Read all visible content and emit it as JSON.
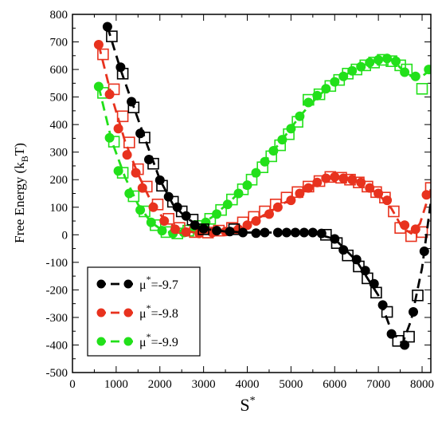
{
  "chart_data": {
    "type": "scatter",
    "xlabel": "S",
    "xlabel_sup": "*",
    "ylabel_main": "Free Energy (k",
    "ylabel_sub": "B",
    "ylabel_end": "T)",
    "xlim": [
      0,
      8200
    ],
    "ylim": [
      -500,
      800
    ],
    "xticks": [
      0,
      1000,
      2000,
      3000,
      4000,
      5000,
      6000,
      7000,
      8000
    ],
    "yticks": [
      -500,
      -400,
      -300,
      -200,
      -100,
      0,
      100,
      200,
      300,
      400,
      500,
      600,
      700,
      800
    ],
    "legend_position": "bottom-left",
    "series": [
      {
        "name": "μ*=-9.7",
        "label_prefix": "μ",
        "label_sup": "*",
        "label_suffix": "=-9.7",
        "color": "#000000",
        "circles": [
          [
            800,
            755
          ],
          [
            1100,
            608
          ],
          [
            1350,
            483
          ],
          [
            1550,
            368
          ],
          [
            1750,
            273
          ],
          [
            2000,
            198
          ],
          [
            2200,
            138
          ],
          [
            2400,
            100
          ],
          [
            2600,
            68
          ],
          [
            2800,
            35
          ],
          [
            3000,
            22
          ],
          [
            3300,
            15
          ],
          [
            3600,
            12
          ],
          [
            3900,
            8
          ],
          [
            4200,
            6
          ],
          [
            4400,
            8
          ],
          [
            4700,
            8
          ],
          [
            4900,
            8
          ],
          [
            5100,
            8
          ],
          [
            5300,
            8
          ],
          [
            5500,
            8
          ],
          [
            5700,
            5
          ],
          [
            6000,
            -15
          ],
          [
            6200,
            -55
          ],
          [
            6500,
            -90
          ],
          [
            6700,
            -130
          ],
          [
            6900,
            -178
          ],
          [
            7100,
            -255
          ],
          [
            7300,
            -360
          ],
          [
            7600,
            -400
          ],
          [
            7800,
            -280
          ],
          [
            8050,
            -60
          ]
        ],
        "squares": [
          [
            900,
            720
          ],
          [
            1150,
            585
          ],
          [
            1400,
            462
          ],
          [
            1650,
            353
          ],
          [
            1850,
            258
          ],
          [
            2050,
            178
          ],
          [
            2300,
            120
          ],
          [
            2500,
            85
          ],
          [
            2750,
            55
          ],
          [
            3000,
            20
          ],
          [
            3700,
            20
          ],
          [
            5800,
            0
          ],
          [
            6050,
            -30
          ],
          [
            6300,
            -75
          ],
          [
            6550,
            -115
          ],
          [
            6750,
            -158
          ],
          [
            6950,
            -210
          ],
          [
            7200,
            -280
          ],
          [
            7450,
            -385
          ],
          [
            7700,
            -370
          ],
          [
            7900,
            -220
          ]
        ],
        "curve": [
          [
            800,
            755
          ],
          [
            1100,
            600
          ],
          [
            1400,
            465
          ],
          [
            1700,
            330
          ],
          [
            2000,
            200
          ],
          [
            2300,
            110
          ],
          [
            2600,
            62
          ],
          [
            3000,
            22
          ],
          [
            3500,
            12
          ],
          [
            4000,
            8
          ],
          [
            4500,
            8
          ],
          [
            5000,
            8
          ],
          [
            5500,
            6
          ],
          [
            6000,
            -15
          ],
          [
            6500,
            -95
          ],
          [
            7000,
            -220
          ],
          [
            7300,
            -350
          ],
          [
            7550,
            -395
          ],
          [
            7750,
            -310
          ],
          [
            8000,
            -120
          ],
          [
            8200,
            120
          ]
        ]
      },
      {
        "name": "μ*=-9.8",
        "label_prefix": "μ",
        "label_sup": "*",
        "label_suffix": "=-9.8",
        "color": "#e8321e",
        "circles": [
          [
            600,
            690
          ],
          [
            850,
            510
          ],
          [
            1050,
            385
          ],
          [
            1250,
            290
          ],
          [
            1450,
            225
          ],
          [
            1600,
            170
          ],
          [
            1850,
            100
          ],
          [
            2100,
            50
          ],
          [
            2350,
            20
          ],
          [
            2600,
            10
          ],
          [
            2900,
            5
          ],
          [
            3200,
            8
          ],
          [
            3500,
            12
          ],
          [
            3800,
            20
          ],
          [
            4000,
            35
          ],
          [
            4200,
            50
          ],
          [
            4500,
            75
          ],
          [
            4700,
            100
          ],
          [
            5000,
            125
          ],
          [
            5200,
            150
          ],
          [
            5400,
            170
          ],
          [
            5600,
            190
          ],
          [
            5800,
            205
          ],
          [
            6000,
            210
          ],
          [
            6200,
            205
          ],
          [
            6400,
            200
          ],
          [
            6600,
            190
          ],
          [
            6800,
            170
          ],
          [
            7000,
            150
          ],
          [
            7200,
            125
          ],
          [
            7600,
            35
          ],
          [
            7850,
            20
          ],
          [
            8100,
            145
          ]
        ],
        "squares": [
          [
            700,
            655
          ],
          [
            950,
            528
          ],
          [
            1150,
            430
          ],
          [
            1300,
            335
          ],
          [
            1500,
            238
          ],
          [
            1700,
            175
          ],
          [
            1950,
            110
          ],
          [
            2200,
            58
          ],
          [
            2450,
            25
          ],
          [
            2800,
            10
          ],
          [
            3100,
            8
          ],
          [
            3350,
            15
          ],
          [
            3650,
            25
          ],
          [
            3900,
            45
          ],
          [
            4150,
            65
          ],
          [
            4400,
            85
          ],
          [
            4650,
            110
          ],
          [
            4900,
            135
          ],
          [
            5150,
            155
          ],
          [
            5400,
            175
          ],
          [
            5650,
            195
          ],
          [
            5900,
            210
          ],
          [
            6150,
            207
          ],
          [
            6350,
            200
          ],
          [
            6550,
            190
          ],
          [
            6750,
            175
          ],
          [
            6950,
            155
          ],
          [
            7150,
            135
          ],
          [
            7350,
            85
          ],
          [
            7500,
            25
          ],
          [
            7750,
            -5
          ],
          [
            8000,
            10
          ],
          [
            8200,
            170
          ]
        ],
        "curve": [
          [
            600,
            690
          ],
          [
            900,
            500
          ],
          [
            1200,
            340
          ],
          [
            1500,
            220
          ],
          [
            1800,
            120
          ],
          [
            2100,
            55
          ],
          [
            2400,
            20
          ],
          [
            2800,
            8
          ],
          [
            3200,
            8
          ],
          [
            3600,
            18
          ],
          [
            4000,
            38
          ],
          [
            4500,
            82
          ],
          [
            5000,
            130
          ],
          [
            5500,
            180
          ],
          [
            5900,
            208
          ],
          [
            6200,
            205
          ],
          [
            6600,
            188
          ],
          [
            7000,
            148
          ],
          [
            7300,
            95
          ],
          [
            7550,
            25
          ],
          [
            7750,
            5
          ],
          [
            7950,
            40
          ],
          [
            8200,
            165
          ]
        ]
      },
      {
        "name": "μ*=-9.9",
        "label_prefix": "μ",
        "label_sup": "*",
        "label_suffix": "=-9.9",
        "color": "#22e01a",
        "circles": [
          [
            600,
            538
          ],
          [
            850,
            352
          ],
          [
            1050,
            232
          ],
          [
            1300,
            150
          ],
          [
            1550,
            90
          ],
          [
            1800,
            45
          ],
          [
            2050,
            15
          ],
          [
            2300,
            5
          ],
          [
            2550,
            8
          ],
          [
            2800,
            22
          ],
          [
            3050,
            45
          ],
          [
            3300,
            75
          ],
          [
            3550,
            110
          ],
          [
            3800,
            150
          ],
          [
            4000,
            180
          ],
          [
            4200,
            225
          ],
          [
            4400,
            265
          ],
          [
            4600,
            305
          ],
          [
            4800,
            345
          ],
          [
            5000,
            385
          ],
          [
            5200,
            430
          ],
          [
            5400,
            480
          ],
          [
            5600,
            505
          ],
          [
            5800,
            530
          ],
          [
            6000,
            555
          ],
          [
            6200,
            575
          ],
          [
            6400,
            595
          ],
          [
            6600,
            610
          ],
          [
            6800,
            625
          ],
          [
            7000,
            635
          ],
          [
            7200,
            640
          ],
          [
            7400,
            630
          ],
          [
            7600,
            590
          ],
          [
            7850,
            575
          ],
          [
            8150,
            600
          ]
        ],
        "squares": [
          [
            700,
            515
          ],
          [
            950,
            338
          ],
          [
            1150,
            225
          ],
          [
            1400,
            140
          ],
          [
            1650,
            85
          ],
          [
            1900,
            35
          ],
          [
            2150,
            10
          ],
          [
            2400,
            5
          ],
          [
            2650,
            15
          ],
          [
            2900,
            32
          ],
          [
            3150,
            58
          ],
          [
            3400,
            90
          ],
          [
            3650,
            128
          ],
          [
            3900,
            165
          ],
          [
            4100,
            200
          ],
          [
            4350,
            245
          ],
          [
            4550,
            285
          ],
          [
            4750,
            325
          ],
          [
            4950,
            365
          ],
          [
            5150,
            410
          ],
          [
            5400,
            490
          ],
          [
            5650,
            510
          ],
          [
            5900,
            540
          ],
          [
            6100,
            562
          ],
          [
            6300,
            585
          ],
          [
            6500,
            600
          ],
          [
            6700,
            615
          ],
          [
            6900,
            625
          ],
          [
            7100,
            635
          ],
          [
            7300,
            630
          ],
          [
            7500,
            615
          ],
          [
            7650,
            600
          ],
          [
            8000,
            530
          ]
        ],
        "curve": [
          [
            600,
            538
          ],
          [
            900,
            340
          ],
          [
            1200,
            210
          ],
          [
            1500,
            110
          ],
          [
            1800,
            45
          ],
          [
            2100,
            12
          ],
          [
            2400,
            5
          ],
          [
            2800,
            22
          ],
          [
            3200,
            65
          ],
          [
            3600,
            120
          ],
          [
            4000,
            182
          ],
          [
            4400,
            265
          ],
          [
            4800,
            345
          ],
          [
            5200,
            430
          ],
          [
            5600,
            500
          ],
          [
            6000,
            555
          ],
          [
            6400,
            595
          ],
          [
            6800,
            625
          ],
          [
            7100,
            638
          ],
          [
            7350,
            632
          ],
          [
            7550,
            598
          ],
          [
            7800,
            570
          ],
          [
            8000,
            575
          ],
          [
            8200,
            600
          ]
        ]
      }
    ]
  }
}
